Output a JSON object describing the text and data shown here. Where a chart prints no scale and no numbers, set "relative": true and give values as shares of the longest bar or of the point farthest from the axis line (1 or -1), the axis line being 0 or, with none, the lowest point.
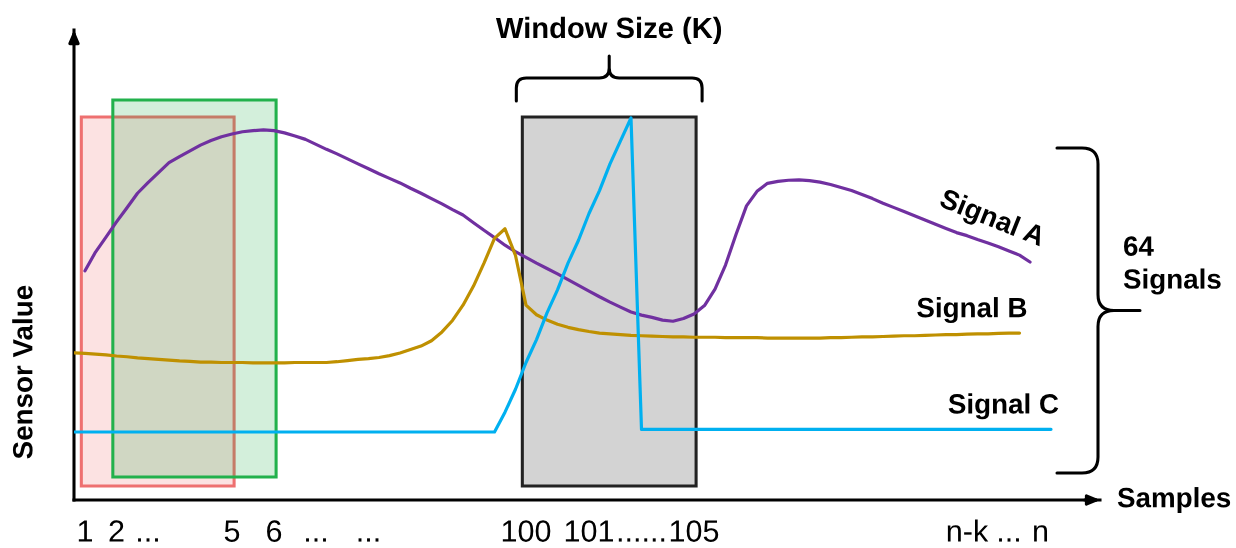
{
  "chart_data": {
    "type": "line",
    "xlabel": "Samples",
    "ylabel": "Sensor Value",
    "relative": true,
    "tick_labels": "x",
    "categories": [
      null,
      "1",
      null,
      null,
      "2",
      null,
      null,
      "...",
      null,
      null,
      null,
      null,
      null,
      null,
      null,
      "5",
      null,
      null,
      null,
      "6",
      null,
      null,
      null,
      "...",
      null,
      null,
      null,
      null,
      "...",
      null,
      null,
      null,
      null,
      null,
      null,
      null,
      null,
      null,
      null,
      null,
      null,
      null,
      null,
      "100",
      null,
      null,
      null,
      null,
      null,
      "101",
      null,
      null,
      null,
      null,
      "......",
      null,
      null,
      null,
      null,
      "105",
      null,
      null,
      null,
      null,
      null,
      null,
      null,
      null,
      null,
      null,
      null,
      null,
      null,
      null,
      null,
      null,
      null,
      null,
      null,
      null,
      null,
      null,
      null,
      null,
      null,
      "n-k",
      null,
      null,
      null,
      "...",
      null,
      null,
      "n",
      null
    ],
    "series": [
      {
        "name": "Signal A",
        "color": "#7030a0",
        "values": [
          null,
          0.6,
          0.649,
          0.688,
          0.728,
          0.765,
          0.803,
          0.831,
          0.857,
          0.883,
          0.899,
          0.914,
          0.929,
          0.941,
          0.951,
          0.958,
          0.964,
          0.967,
          0.969,
          0.967,
          0.961,
          0.953,
          0.944,
          0.931,
          0.918,
          0.906,
          0.893,
          0.88,
          0.867,
          0.854,
          0.842,
          0.83,
          0.816,
          0.803,
          0.789,
          0.775,
          0.76,
          0.746,
          0.726,
          0.706,
          0.687,
          0.667,
          0.65,
          0.635,
          0.62,
          0.606,
          0.592,
          0.577,
          0.562,
          0.547,
          0.532,
          0.518,
          0.505,
          0.492,
          0.484,
          0.478,
          0.471,
          0.468,
          0.475,
          0.487,
          0.509,
          0.552,
          0.615,
          0.695,
          0.77,
          0.808,
          0.829,
          0.834,
          0.837,
          0.838,
          0.836,
          0.832,
          0.826,
          0.818,
          0.81,
          0.8,
          0.789,
          0.777,
          0.766,
          0.755,
          0.744,
          0.733,
          0.722,
          0.711,
          0.7,
          0.692,
          0.682,
          0.673,
          0.663,
          0.652,
          0.641,
          0.623,
          null,
          null
        ]
      },
      {
        "name": "Signal B",
        "color": "#bf9000",
        "values": [
          0.385,
          0.384,
          0.382,
          0.38,
          0.377,
          0.375,
          0.372,
          0.37,
          0.368,
          0.366,
          0.364,
          0.363,
          0.361,
          0.361,
          0.36,
          0.36,
          0.36,
          0.359,
          0.359,
          0.359,
          0.359,
          0.36,
          0.36,
          0.36,
          0.36,
          0.362,
          0.365,
          0.368,
          0.37,
          0.373,
          0.378,
          0.385,
          0.394,
          0.403,
          0.417,
          0.44,
          0.47,
          0.51,
          0.56,
          0.62,
          0.685,
          0.71,
          0.64,
          0.51,
          0.485,
          0.471,
          0.46,
          0.452,
          0.446,
          0.441,
          0.437,
          0.435,
          0.433,
          0.431,
          0.43,
          0.429,
          0.428,
          0.427,
          0.427,
          0.426,
          0.426,
          0.426,
          0.425,
          0.425,
          0.425,
          0.425,
          0.424,
          0.424,
          0.424,
          0.424,
          0.424,
          0.424,
          0.425,
          0.425,
          0.426,
          0.427,
          0.427,
          0.428,
          0.429,
          0.43,
          0.43,
          0.431,
          0.432,
          0.433,
          0.433,
          0.434,
          0.435,
          0.435,
          0.436,
          0.437,
          0.437,
          null,
          null,
          null
        ]
      },
      {
        "name": "Signal C",
        "color": "#00b0f0",
        "values": [
          0.178,
          0.178,
          0.178,
          0.178,
          0.178,
          0.178,
          0.178,
          0.178,
          0.178,
          0.178,
          0.178,
          0.178,
          0.178,
          0.178,
          0.178,
          0.178,
          0.178,
          0.178,
          0.178,
          0.178,
          0.178,
          0.178,
          0.178,
          0.178,
          0.178,
          0.178,
          0.178,
          0.178,
          0.178,
          0.178,
          0.178,
          0.178,
          0.178,
          0.178,
          0.178,
          0.178,
          0.178,
          0.178,
          0.178,
          0.178,
          0.178,
          0.23,
          0.29,
          0.36,
          0.42,
          0.49,
          0.55,
          0.62,
          0.68,
          0.75,
          0.81,
          0.88,
          0.94,
          1.0,
          0.185,
          0.185,
          0.185,
          0.185,
          0.185,
          0.185,
          0.185,
          0.185,
          0.185,
          0.185,
          0.185,
          0.185,
          0.185,
          0.185,
          0.185,
          0.185,
          0.185,
          0.185,
          0.185,
          0.185,
          0.185,
          0.185,
          0.185,
          0.185,
          0.185,
          0.185,
          0.185,
          0.185,
          0.185,
          0.185,
          0.185,
          0.185,
          0.185,
          0.185,
          0.185,
          0.185,
          0.185,
          0.185,
          0.185,
          0.185
        ]
      }
    ],
    "bands": [
      {
        "axis": "x",
        "from": "1",
        "to": "5",
        "color": "#ee7070"
      },
      {
        "axis": "x",
        "from": "2",
        "to": "6",
        "color": "#22b14c"
      },
      {
        "axis": "x",
        "from": "100",
        "to": "105",
        "color": "#222222",
        "label": "Window Size (K)"
      }
    ],
    "annotations": [
      "64\nSignals"
    ]
  }
}
